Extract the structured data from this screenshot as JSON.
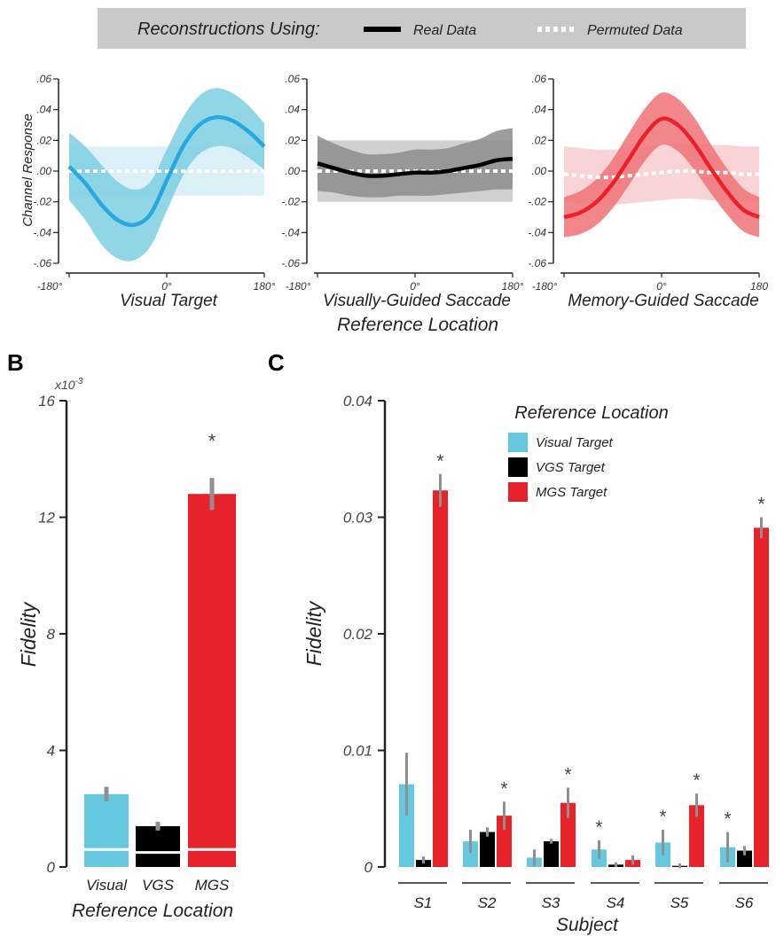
{
  "legend_banner": {
    "title": "Reconstructions Using:",
    "real": "Real Data",
    "permuted": "Permuted Data"
  },
  "panel_labels": {
    "b": "B",
    "c": "C"
  },
  "panelA": {
    "ylabel": "Channel Response",
    "xlabel": "Reference Location",
    "yticks": [
      ".06",
      ".04",
      ".02",
      ".00",
      "-.02",
      "-.04",
      "-.06"
    ],
    "xticks": [
      "-180°",
      "0°",
      "180°"
    ],
    "xticks_last": [
      "180°",
      "180°",
      "180"
    ],
    "titles": [
      "Visual Target",
      "Visually-Guided Saccade",
      "Memory-Guided Saccade"
    ]
  },
  "panelB": {
    "ylabel": "Fidelity",
    "xlabel": "Reference Location",
    "multiplier": "x10",
    "exponent": "-3",
    "yticks": [
      "16",
      "12",
      "8",
      "4",
      "0"
    ],
    "star": "*"
  },
  "panelC": {
    "ylabel": "Fidelity",
    "xlabel": "Subject",
    "legend_title": "Reference Location",
    "legend": [
      "Visual Target",
      "VGS Target",
      "MGS Target"
    ],
    "yticks": [
      "0.04",
      "0.03",
      "0.02",
      "0.01",
      "0"
    ],
    "star": "*"
  },
  "colors": {
    "visual": "#65c8df",
    "vgs": "#000000",
    "mgs": "#e8222a",
    "visual_line": "#27a8df",
    "visual_band": "#7ccfe3",
    "visual_perm": "#d6eef6",
    "vgs_band": "#8d8d8d",
    "vgs_perm": "#c8c8c8",
    "mgs_line": "#e8222a",
    "mgs_band": "#ee7277",
    "mgs_perm": "#f8cdcf",
    "banner_bg": "#c9c9c9",
    "errorbar": "#8f8f8f"
  },
  "chart_data": [
    {
      "type": "line",
      "title": "Visual Target",
      "xlabel": "Reference Location",
      "ylabel": "Channel Response",
      "x": [
        -180,
        -150,
        -120,
        -90,
        -60,
        -30,
        0,
        30,
        60,
        90,
        120,
        150,
        180
      ],
      "xlim": [
        -180,
        180
      ],
      "ylim": [
        -0.06,
        0.06
      ],
      "series": [
        {
          "name": "Real Data",
          "values": [
            0.003,
            -0.008,
            -0.022,
            -0.032,
            -0.035,
            -0.028,
            -0.006,
            0.016,
            0.03,
            0.035,
            0.033,
            0.026,
            0.016
          ],
          "band_half_width": [
            0.022,
            0.024,
            0.026,
            0.025,
            0.023,
            0.021,
            0.02,
            0.019,
            0.019,
            0.019,
            0.018,
            0.017,
            0.015
          ]
        },
        {
          "name": "Permuted Data",
          "values": [
            0.0,
            0.0,
            0.0,
            0.0,
            0.0,
            0.0,
            0.0,
            0.0,
            0.0,
            0.0,
            0.0,
            0.0,
            0.0
          ],
          "band_half_width": [
            0.016,
            0.016,
            0.016,
            0.016,
            0.016,
            0.016,
            0.016,
            0.016,
            0.016,
            0.016,
            0.016,
            0.016,
            0.016
          ]
        }
      ]
    },
    {
      "type": "line",
      "title": "Visually-Guided Saccade",
      "xlabel": "Reference Location",
      "ylabel": "Channel Response",
      "x": [
        -180,
        -150,
        -120,
        -90,
        -60,
        -30,
        0,
        30,
        60,
        90,
        120,
        150,
        180
      ],
      "xlim": [
        -180,
        180
      ],
      "ylim": [
        -0.06,
        0.06
      ],
      "series": [
        {
          "name": "Real Data",
          "values": [
            0.005,
            0.002,
            -0.001,
            -0.003,
            -0.003,
            -0.002,
            -0.001,
            -0.001,
            0.0,
            0.002,
            0.004,
            0.007,
            0.008
          ],
          "band_half_width": [
            0.018,
            0.016,
            0.015,
            0.014,
            0.014,
            0.014,
            0.015,
            0.015,
            0.015,
            0.016,
            0.017,
            0.019,
            0.02
          ]
        },
        {
          "name": "Permuted Data",
          "values": [
            0.0,
            0.0,
            0.0,
            0.0,
            0.0,
            0.0,
            0.0,
            0.0,
            0.0,
            0.0,
            0.0,
            0.0,
            0.0
          ],
          "band_half_width": [
            0.02,
            0.02,
            0.02,
            0.02,
            0.02,
            0.02,
            0.02,
            0.02,
            0.02,
            0.02,
            0.02,
            0.02,
            0.02
          ]
        }
      ]
    },
    {
      "type": "line",
      "title": "Memory-Guided Saccade",
      "xlabel": "Reference Location",
      "ylabel": "Channel Response",
      "x": [
        -180,
        -150,
        -120,
        -90,
        -60,
        -30,
        0,
        30,
        60,
        90,
        120,
        150,
        180
      ],
      "xlim": [
        -180,
        180
      ],
      "ylim": [
        -0.06,
        0.06
      ],
      "series": [
        {
          "name": "Real Data",
          "values": [
            -0.03,
            -0.027,
            -0.02,
            -0.008,
            0.008,
            0.024,
            0.034,
            0.03,
            0.018,
            0.002,
            -0.013,
            -0.025,
            -0.03
          ],
          "band_half_width": [
            0.013,
            0.014,
            0.015,
            0.016,
            0.017,
            0.017,
            0.017,
            0.017,
            0.017,
            0.016,
            0.015,
            0.014,
            0.013
          ]
        },
        {
          "name": "Permuted Data",
          "values": [
            -0.002,
            -0.003,
            -0.004,
            -0.004,
            -0.003,
            -0.002,
            -0.001,
            0.0,
            0.0,
            -0.001,
            -0.001,
            -0.002,
            -0.002
          ],
          "band_half_width": [
            0.018,
            0.018,
            0.018,
            0.018,
            0.018,
            0.018,
            0.018,
            0.018,
            0.018,
            0.018,
            0.018,
            0.018,
            0.018
          ]
        }
      ]
    },
    {
      "type": "bar",
      "xlabel": "Reference Location",
      "ylabel": "Fidelity",
      "unit_multiplier": "x10^-3",
      "categories": [
        "Visual",
        "VGS",
        "MGS"
      ],
      "values": [
        2.5,
        1.4,
        12.8
      ],
      "chance": [
        0.6,
        0.5,
        0.6
      ],
      "error": [
        0.25,
        0.15,
        0.55
      ],
      "significant": [
        false,
        false,
        true
      ],
      "ylim": [
        0,
        16
      ]
    },
    {
      "type": "bar",
      "xlabel": "Subject",
      "ylabel": "Fidelity",
      "categories": [
        "S1",
        "S2",
        "S3",
        "S4",
        "S5",
        "S6"
      ],
      "ylim": [
        0,
        0.04
      ],
      "series": [
        {
          "name": "Visual Target",
          "values": [
            0.0071,
            0.0022,
            0.0008,
            0.0015,
            0.0021,
            0.0017
          ],
          "error": [
            0.0027,
            0.001,
            0.0007,
            0.0008,
            0.0011,
            0.0013
          ],
          "significant": [
            false,
            false,
            false,
            true,
            true,
            true
          ]
        },
        {
          "name": "VGS Target",
          "values": [
            0.0006,
            0.003,
            0.0022,
            0.0002,
            0.0001,
            0.0014
          ],
          "error": [
            0.0003,
            0.0004,
            0.0002,
            0.0002,
            0.0002,
            0.0004
          ],
          "significant": [
            false,
            false,
            false,
            false,
            false,
            false
          ]
        },
        {
          "name": "MGS Target",
          "values": [
            0.0323,
            0.0044,
            0.0055,
            0.0006,
            0.0053,
            0.0291
          ],
          "error": [
            0.0014,
            0.0012,
            0.0013,
            0.0004,
            0.001,
            0.0009
          ],
          "significant": [
            true,
            true,
            true,
            false,
            true,
            true
          ]
        }
      ]
    }
  ]
}
